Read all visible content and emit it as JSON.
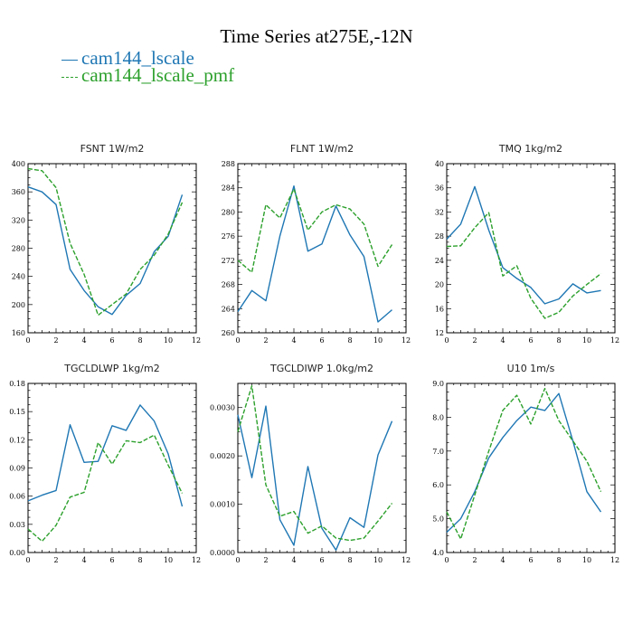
{
  "figure": {
    "title": "Time Series at275E,-12N",
    "legend": [
      {
        "name": "cam144_lscale",
        "color": "#1f77b4",
        "dash": "solid"
      },
      {
        "name": "cam144_lscale_pmf",
        "color": "#2ca02c",
        "dash": "dashed"
      }
    ]
  },
  "chart_data": [
    {
      "type": "line",
      "title": "FSNT   1W/m2",
      "x": [
        0,
        1,
        2,
        3,
        4,
        5,
        6,
        7,
        8,
        9,
        10,
        11
      ],
      "xlim": [
        0,
        12
      ],
      "xticks": [
        0,
        2,
        4,
        6,
        8,
        10,
        12
      ],
      "ylim": [
        160,
        400
      ],
      "yticks": [
        "160",
        "200",
        "240",
        "280",
        "320",
        "360",
        "400"
      ],
      "series": [
        {
          "name": "cam144_lscale",
          "values": [
            367,
            360,
            342,
            250,
            220,
            197,
            186,
            213,
            230,
            275,
            297,
            356
          ]
        },
        {
          "name": "cam144_lscale_pmf",
          "values": [
            393,
            390,
            366,
            287,
            243,
            185,
            200,
            215,
            250,
            270,
            300,
            345
          ]
        }
      ]
    },
    {
      "type": "line",
      "title": "FLNT   1W/m2",
      "x": [
        0,
        1,
        2,
        3,
        4,
        5,
        6,
        7,
        8,
        9,
        10,
        11
      ],
      "xlim": [
        0,
        12
      ],
      "xticks": [
        0,
        2,
        4,
        6,
        8,
        10,
        12
      ],
      "ylim": [
        260,
        288
      ],
      "yticks": [
        "260",
        "264",
        "268",
        "272",
        "276",
        "280",
        "284",
        "288"
      ],
      "series": [
        {
          "name": "cam144_lscale",
          "values": [
            263.5,
            267,
            265.3,
            276,
            284.3,
            273.5,
            274.7,
            281,
            276.2,
            272.6,
            261.8,
            263.8
          ]
        },
        {
          "name": "cam144_lscale_pmf",
          "values": [
            272,
            270,
            281.2,
            279,
            283.8,
            277,
            280,
            281.2,
            280.5,
            278,
            271,
            274.6
          ]
        }
      ]
    },
    {
      "type": "line",
      "title": "TMQ   1kg/m2",
      "x": [
        0,
        1,
        2,
        3,
        4,
        5,
        6,
        7,
        8,
        9,
        10,
        11
      ],
      "xlim": [
        0,
        12
      ],
      "xticks": [
        0,
        2,
        4,
        6,
        8,
        10,
        12
      ],
      "ylim": [
        12,
        40
      ],
      "yticks": [
        "12",
        "16",
        "20",
        "24",
        "28",
        "32",
        "36",
        "40"
      ],
      "series": [
        {
          "name": "cam144_lscale",
          "values": [
            27.5,
            30,
            36.2,
            29,
            22.8,
            21,
            19.5,
            16.8,
            17.6,
            20.1,
            18.6,
            19
          ]
        },
        {
          "name": "cam144_lscale_pmf",
          "values": [
            26.3,
            26.4,
            29.4,
            31.9,
            21.4,
            23.1,
            17.7,
            14.4,
            15.4,
            18.1,
            20,
            21.8
          ]
        }
      ]
    },
    {
      "type": "line",
      "title": "TGCLDLWP   1kg/m2",
      "x": [
        0,
        1,
        2,
        3,
        4,
        5,
        6,
        7,
        8,
        9,
        10,
        11
      ],
      "xlim": [
        0,
        12
      ],
      "xticks": [
        0,
        2,
        4,
        6,
        8,
        10,
        12
      ],
      "ylim": [
        0,
        0.18
      ],
      "yticks": [
        "0.00",
        "0.03",
        "0.06",
        "0.09",
        "0.12",
        "0.15",
        "0.18"
      ],
      "series": [
        {
          "name": "cam144_lscale",
          "values": [
            0.055,
            0.061,
            0.066,
            0.136,
            0.096,
            0.097,
            0.135,
            0.13,
            0.157,
            0.14,
            0.105,
            0.049
          ]
        },
        {
          "name": "cam144_lscale_pmf",
          "values": [
            0.025,
            0.012,
            0.029,
            0.059,
            0.064,
            0.117,
            0.094,
            0.119,
            0.117,
            0.125,
            0.093,
            0.063
          ]
        }
      ]
    },
    {
      "type": "line",
      "title": "TGCLDIWP   1.0kg/m2",
      "x": [
        0,
        1,
        2,
        3,
        4,
        5,
        6,
        7,
        8,
        9,
        10,
        11
      ],
      "xlim": [
        0,
        12
      ],
      "xticks": [
        0,
        2,
        4,
        6,
        8,
        10,
        12
      ],
      "ylim": [
        0,
        0.0035
      ],
      "yticks": [
        "0.0000",
        "0.0010",
        "0.0020",
        "0.0030"
      ],
      "series": [
        {
          "name": "cam144_lscale",
          "values": [
            0.00285,
            0.00155,
            0.00303,
            0.00068,
            0.00015,
            0.00178,
            0.0005,
            5e-05,
            0.00072,
            0.00052,
            0.00202,
            0.00272
          ]
        },
        {
          "name": "cam144_lscale_pmf",
          "values": [
            0.0025,
            0.00345,
            0.0014,
            0.00075,
            0.00085,
            0.0004,
            0.00055,
            0.0003,
            0.00025,
            0.0003,
            0.00065,
            0.00102
          ]
        }
      ]
    },
    {
      "type": "line",
      "title": "U10   1m/s",
      "x": [
        0,
        1,
        2,
        3,
        4,
        5,
        6,
        7,
        8,
        9,
        10,
        11
      ],
      "xlim": [
        0,
        12
      ],
      "xticks": [
        0,
        2,
        4,
        6,
        8,
        10,
        12
      ],
      "ylim": [
        4.0,
        9.0
      ],
      "yticks": [
        "4.0",
        "5.0",
        "6.0",
        "7.0",
        "8.0",
        "9.0"
      ],
      "series": [
        {
          "name": "cam144_lscale",
          "values": [
            4.6,
            5.0,
            5.8,
            6.8,
            7.4,
            7.9,
            8.3,
            8.2,
            8.7,
            7.3,
            5.8,
            5.2
          ]
        },
        {
          "name": "cam144_lscale_pmf",
          "values": [
            5.2,
            4.4,
            5.7,
            7.0,
            8.2,
            8.65,
            7.8,
            8.85,
            7.9,
            7.3,
            6.7,
            5.8
          ]
        }
      ]
    }
  ]
}
